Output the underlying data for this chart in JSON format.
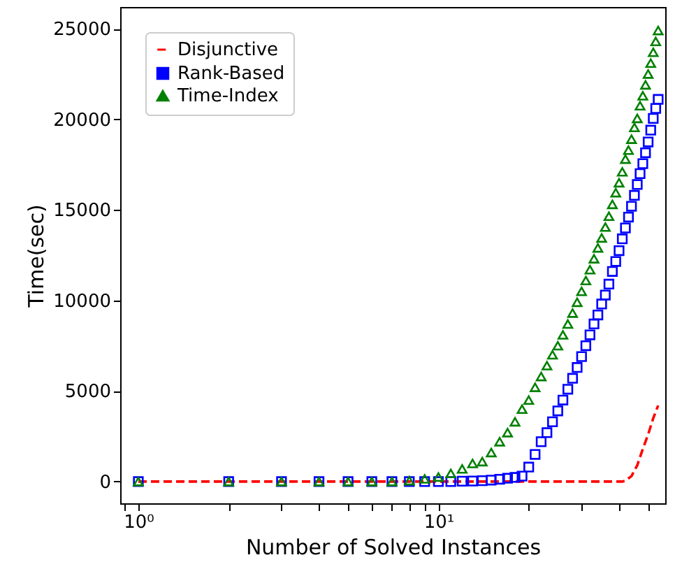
{
  "chart_data": {
    "type": "scatter",
    "xlabel": "Number of Solved Instances",
    "ylabel": "Time(sec)",
    "log": "x",
    "xlim": [
      0.87,
      57
    ],
    "ylim": [
      -1200,
      26200
    ],
    "xticks": [
      {
        "value": 0.9,
        "label": null
      },
      {
        "value": 1,
        "label": "10⁰"
      },
      {
        "value": 2,
        "label": null
      },
      {
        "value": 3,
        "label": null
      },
      {
        "value": 4,
        "label": null
      },
      {
        "value": 5,
        "label": null
      },
      {
        "value": 6,
        "label": null
      },
      {
        "value": 7,
        "label": null
      },
      {
        "value": 8,
        "label": null
      },
      {
        "value": 9,
        "label": null
      },
      {
        "value": 10,
        "label": "10¹"
      },
      {
        "value": 20,
        "label": null
      },
      {
        "value": 30,
        "label": null
      },
      {
        "value": 40,
        "label": null
      },
      {
        "value": 50,
        "label": null
      }
    ],
    "yticks": [
      0,
      5000,
      10000,
      15000,
      20000,
      25000
    ],
    "grid": false,
    "legend": "top left",
    "series": [
      {
        "name": "Disjunctive",
        "type": "line",
        "color": "#ff0000",
        "line_style": "dashed",
        "x": [
          1,
          41,
          42,
          44,
          46,
          48,
          50,
          52,
          54
        ],
        "values": [
          0,
          0,
          50,
          300,
          900,
          1800,
          2600,
          3500,
          4200
        ]
      },
      {
        "name": "Rank-Based",
        "type": "scatter",
        "color": "#0000ff",
        "marker": "square",
        "x": [
          1,
          2,
          3,
          4,
          5,
          6,
          7,
          8,
          9,
          10,
          11,
          12,
          13,
          14,
          15,
          16,
          17,
          18,
          19,
          20,
          21,
          22,
          23,
          24,
          25,
          26,
          27,
          28,
          29,
          30,
          31,
          32,
          33,
          34,
          35,
          36,
          37,
          38,
          39,
          40,
          41,
          42,
          43,
          44,
          45,
          46,
          47,
          48,
          49,
          50,
          51,
          52,
          53,
          54
        ],
        "values": [
          0,
          0,
          0,
          0,
          0,
          0,
          0,
          0,
          0,
          0,
          0,
          20,
          30,
          50,
          80,
          130,
          180,
          230,
          300,
          800,
          1500,
          2200,
          2700,
          3300,
          3900,
          4500,
          5100,
          5700,
          6300,
          6900,
          7500,
          8100,
          8700,
          9200,
          9800,
          10300,
          10900,
          11600,
          12150,
          12750,
          13400,
          14000,
          14600,
          15200,
          15800,
          16400,
          17000,
          17550,
          18150,
          18750,
          19400,
          20050,
          20600,
          21100
        ]
      },
      {
        "name": "Time-Index",
        "type": "scatter",
        "color": "#008000",
        "marker": "triangle",
        "x": [
          1,
          2,
          3,
          4,
          5,
          6,
          7,
          8,
          9,
          10,
          11,
          12,
          13,
          14,
          15,
          16,
          17,
          18,
          19,
          20,
          21,
          22,
          23,
          24,
          25,
          26,
          27,
          28,
          29,
          30,
          31,
          32,
          33,
          34,
          35,
          36,
          37,
          38,
          39,
          40,
          41,
          42,
          43,
          44,
          45,
          46,
          47,
          48,
          49,
          50,
          51,
          52,
          53,
          54
        ],
        "values": [
          0,
          0,
          0,
          0,
          0,
          0,
          0,
          50,
          150,
          250,
          450,
          700,
          1000,
          1100,
          1600,
          2200,
          2700,
          3300,
          4000,
          4500,
          5200,
          5800,
          6400,
          7000,
          7500,
          8100,
          8700,
          9300,
          9900,
          10500,
          11100,
          11700,
          12300,
          12900,
          13450,
          14050,
          14650,
          15300,
          15950,
          16500,
          17100,
          17800,
          18300,
          18900,
          19550,
          20050,
          20750,
          21300,
          21900,
          22500,
          23100,
          23700,
          24300,
          24900
        ]
      }
    ]
  }
}
